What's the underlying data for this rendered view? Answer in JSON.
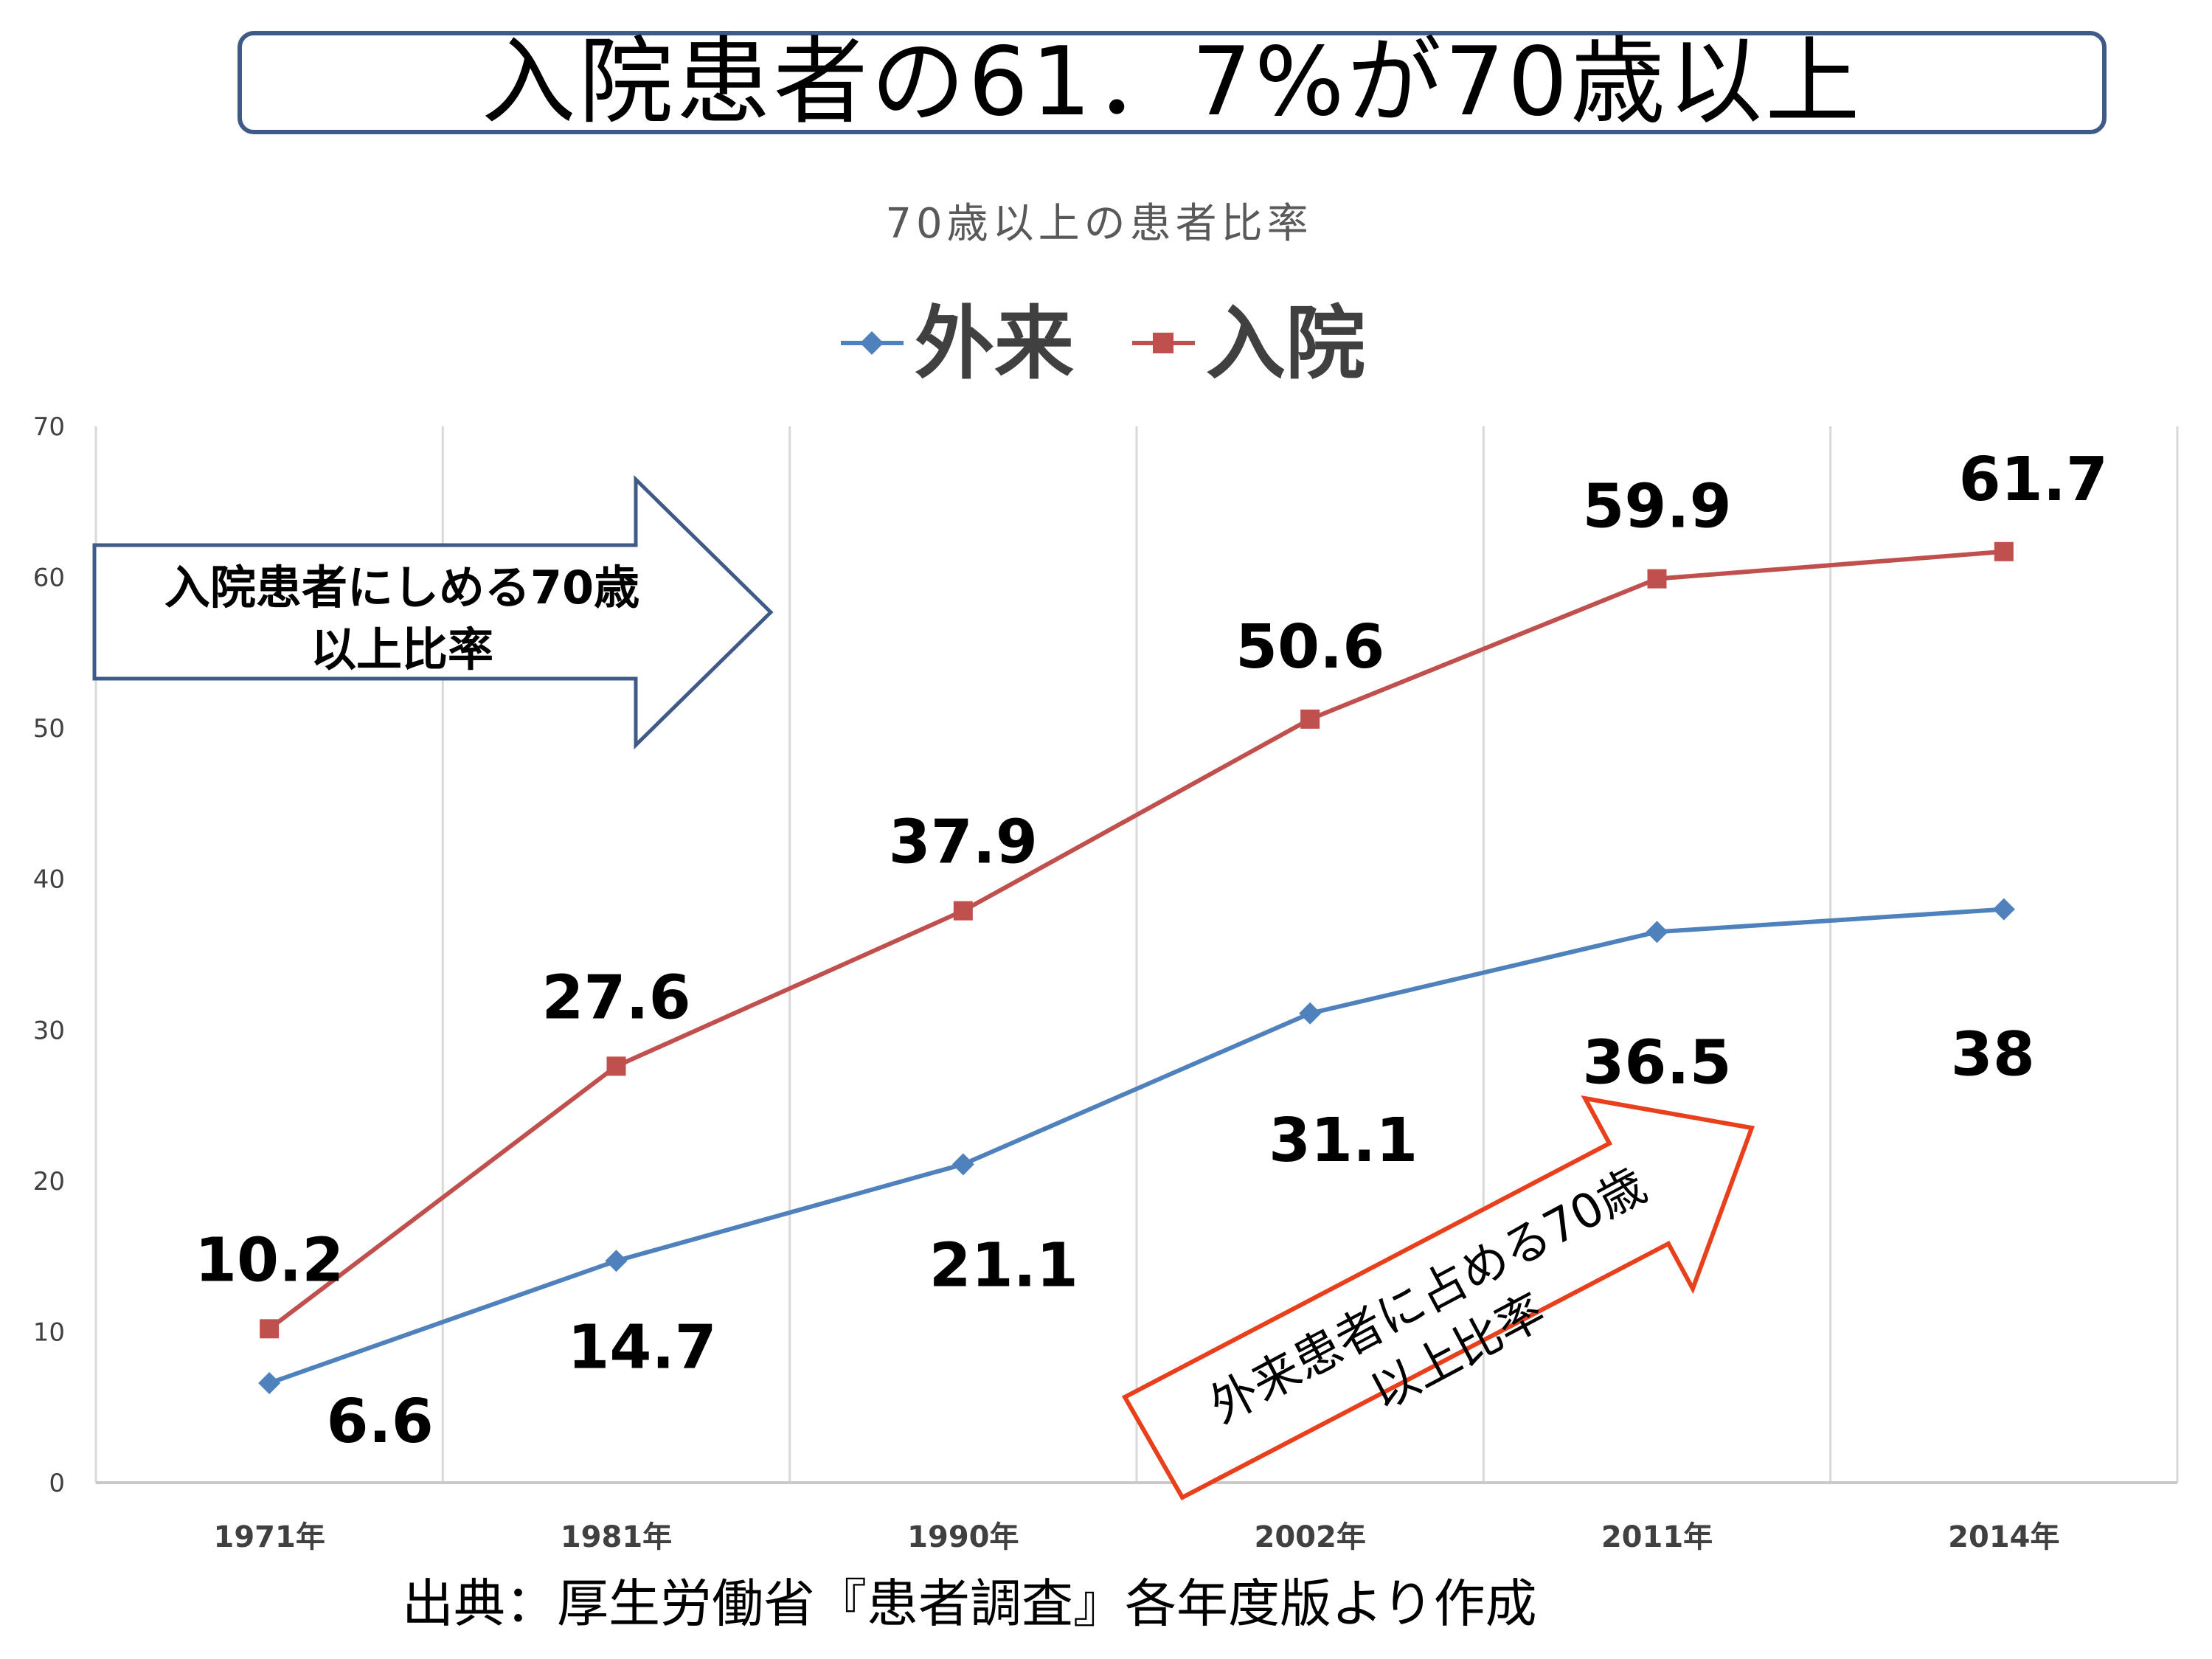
{
  "header": {
    "title": "入院患者の61．7%が70歳以上"
  },
  "source": {
    "text": "出典：厚生労働省『患者調査』各年度版より作成"
  },
  "chart_data": {
    "type": "line",
    "title": "70歳以上の患者比率",
    "categories": [
      "1971年",
      "1981年",
      "1990年",
      "2002年",
      "2011年",
      "2014年"
    ],
    "ylim": [
      0,
      70
    ],
    "yticks": [
      0,
      10,
      20,
      30,
      40,
      50,
      60,
      70
    ],
    "grid": "vertical",
    "legend_position": "top",
    "series": [
      {
        "name": "外来",
        "color": "#4f81bd",
        "marker": "diamond",
        "values": [
          6.6,
          14.7,
          21.1,
          31.1,
          36.5,
          38
        ]
      },
      {
        "name": "入院",
        "color": "#c0504d",
        "marker": "square",
        "values": [
          10.2,
          27.6,
          37.9,
          50.6,
          59.9,
          61.7
        ]
      }
    ],
    "data_labels": {
      "外来": [
        "6.6",
        "14.7",
        "21.1",
        "31.1",
        "36.5",
        "38"
      ],
      "入院": [
        "10.2",
        "27.6",
        "37.9",
        "50.6",
        "59.9",
        "61.7"
      ]
    },
    "annotations": [
      {
        "lines": [
          "入院患者にしめる70歳",
          "以上比率"
        ],
        "shape": "arrow-right",
        "color": "#3f5a86"
      },
      {
        "lines": [
          "外来患者に占める70歳",
          "以上比率"
        ],
        "shape": "arrow-up-right",
        "color": "#e8401c"
      }
    ]
  }
}
